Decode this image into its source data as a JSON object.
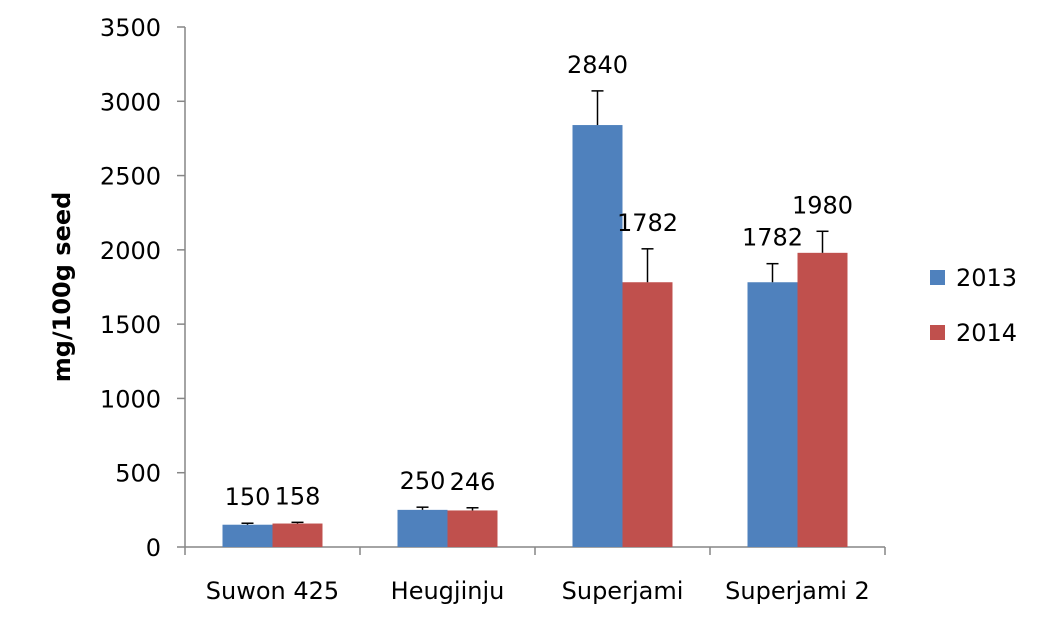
{
  "chart_data": {
    "type": "bar",
    "title": "",
    "xlabel": "",
    "ylabel": "mg/100g   seed",
    "ylim": [
      0,
      3500
    ],
    "yticks": [
      0,
      500,
      1000,
      1500,
      2000,
      2500,
      3000,
      3500
    ],
    "categories": [
      "Suwon 425",
      "Heugjinju",
      "Superjami",
      "Superjami 2"
    ],
    "series": [
      {
        "name": "2013",
        "color": "#4f81bd",
        "values": [
          150,
          250,
          2840,
          1782
        ],
        "errors": [
          10,
          18,
          230,
          125
        ],
        "labels": [
          "150",
          "250",
          "2840",
          "1782"
        ]
      },
      {
        "name": "2014",
        "color": "#c0504d",
        "values": [
          158,
          246,
          1782,
          1980
        ],
        "errors": [
          8,
          18,
          225,
          145
        ],
        "labels": [
          "158",
          "246",
          "1782",
          "1980"
        ]
      }
    ],
    "grid": false,
    "legend_position": "right",
    "error_bars": true
  }
}
